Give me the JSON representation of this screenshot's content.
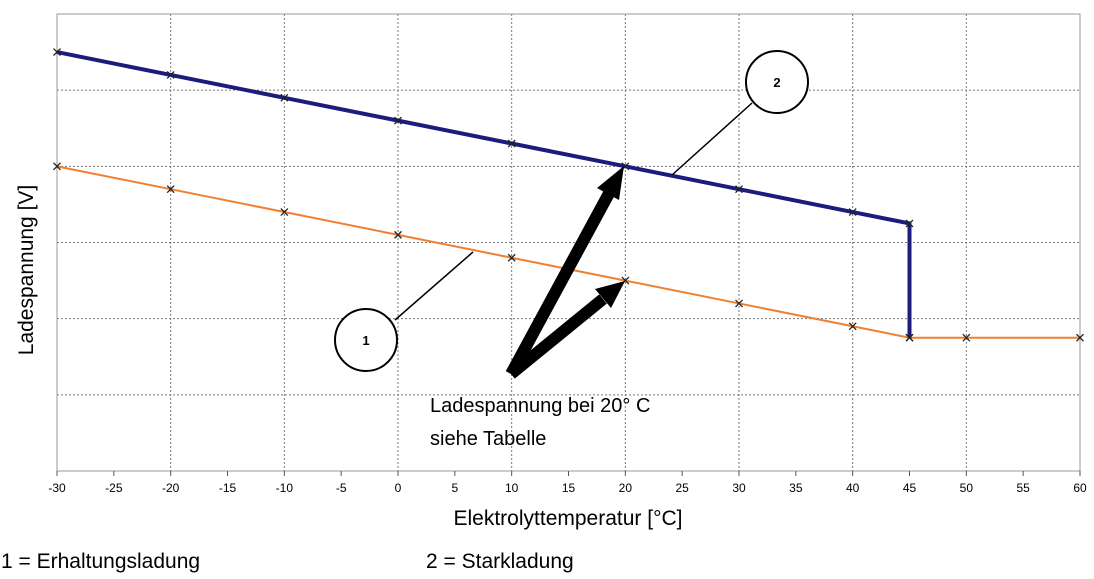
{
  "chart_data": {
    "type": "line",
    "xlabel": "Elektrolyttemperatur [°C]",
    "ylabel": "Ladespannung [V]",
    "xlim": [
      -30,
      60
    ],
    "x_ticks": [
      "-30",
      "-25",
      "-20",
      "-15",
      "-10",
      "-5",
      "0",
      "5",
      "10",
      "15",
      "20",
      "25",
      "30",
      "35",
      "40",
      "45",
      "50",
      "55",
      "60"
    ],
    "ylim": [
      0,
      6
    ],
    "y_tick_labels_shown": false,
    "grid": true,
    "series": [
      {
        "id": "1",
        "color": "#f08030",
        "x": [
          -30,
          -20,
          -10,
          0,
          10,
          20,
          30,
          40,
          45,
          50,
          60
        ],
        "y": [
          4.0,
          3.7,
          3.4,
          3.1,
          2.8,
          2.5,
          2.2,
          1.9,
          1.75,
          1.75,
          1.75
        ]
      },
      {
        "id": "2",
        "color": "#1c1c7c",
        "x": [
          -30,
          -20,
          -10,
          0,
          10,
          20,
          30,
          40,
          45,
          45
        ],
        "y": [
          5.5,
          5.2,
          4.9,
          4.6,
          4.3,
          4.0,
          3.7,
          3.4,
          3.25,
          1.75
        ]
      }
    ],
    "annotations": {
      "circle_1": "1",
      "circle_2": "2",
      "note_line1": "Ladespannung bei 20° C",
      "note_line2": "siehe Tabelle"
    }
  },
  "legend": {
    "item1": "1 = Erhaltungsladung",
    "item2": "2 = Starkladung"
  }
}
